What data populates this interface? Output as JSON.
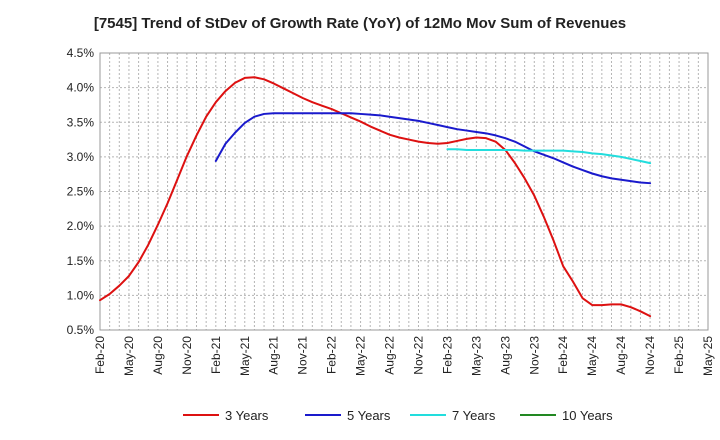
{
  "chart_data": {
    "type": "line",
    "title": "[7545]  Trend of StDev of Growth Rate (YoY) of 12Mo Mov Sum of Revenues",
    "xlabel": "",
    "ylabel": "",
    "ylim": [
      0.5,
      4.5
    ],
    "y_ticks": [
      "0.5%",
      "1.0%",
      "1.5%",
      "2.0%",
      "2.5%",
      "3.0%",
      "3.5%",
      "4.0%",
      "4.5%"
    ],
    "x_ticks": [
      "Feb-20",
      "May-20",
      "Aug-20",
      "Nov-20",
      "Feb-21",
      "May-21",
      "Aug-21",
      "Nov-21",
      "Feb-22",
      "May-22",
      "Aug-22",
      "Nov-22",
      "Feb-23",
      "May-23",
      "Aug-23",
      "Nov-23",
      "Feb-24",
      "May-24",
      "Aug-24",
      "Nov-24",
      "Feb-25",
      "May-25"
    ],
    "grid": true,
    "legend_position": "bottom",
    "series": [
      {
        "name": "3 Years",
        "color": "#dd1111",
        "points": [
          [
            0,
            0.93
          ],
          [
            1,
            1.02
          ],
          [
            2,
            1.14
          ],
          [
            3,
            1.28
          ],
          [
            4,
            1.48
          ],
          [
            5,
            1.73
          ],
          [
            6,
            2.02
          ],
          [
            7,
            2.33
          ],
          [
            8,
            2.67
          ],
          [
            9,
            3.01
          ],
          [
            10,
            3.31
          ],
          [
            11,
            3.58
          ],
          [
            12,
            3.79
          ],
          [
            13,
            3.95
          ],
          [
            14,
            4.07
          ],
          [
            15,
            4.14
          ],
          [
            16,
            4.15
          ],
          [
            17,
            4.12
          ],
          [
            18,
            4.06
          ],
          [
            19,
            3.99
          ],
          [
            20,
            3.92
          ],
          [
            21,
            3.85
          ],
          [
            22,
            3.79
          ],
          [
            23,
            3.74
          ],
          [
            24,
            3.69
          ],
          [
            25,
            3.63
          ],
          [
            26,
            3.57
          ],
          [
            27,
            3.51
          ],
          [
            28,
            3.44
          ],
          [
            29,
            3.38
          ],
          [
            30,
            3.32
          ],
          [
            31,
            3.28
          ],
          [
            32,
            3.25
          ],
          [
            33,
            3.22
          ],
          [
            34,
            3.2
          ],
          [
            35,
            3.19
          ],
          [
            36,
            3.2
          ],
          [
            37,
            3.23
          ],
          [
            38,
            3.26
          ],
          [
            39,
            3.28
          ],
          [
            40,
            3.27
          ],
          [
            41,
            3.22
          ],
          [
            42,
            3.1
          ],
          [
            43,
            2.91
          ],
          [
            44,
            2.69
          ],
          [
            45,
            2.44
          ],
          [
            46,
            2.13
          ],
          [
            47,
            1.79
          ],
          [
            48,
            1.42
          ],
          [
            49,
            1.2
          ],
          [
            50,
            0.96
          ],
          [
            51,
            0.86
          ],
          [
            52,
            0.86
          ],
          [
            53,
            0.87
          ],
          [
            54,
            0.87
          ],
          [
            55,
            0.83
          ],
          [
            56,
            0.77
          ],
          [
            57,
            0.7
          ]
        ]
      },
      {
        "name": "5 Years",
        "color": "#1a1acc",
        "points": [
          [
            12,
            2.94
          ],
          [
            13,
            3.19
          ],
          [
            14,
            3.35
          ],
          [
            15,
            3.49
          ],
          [
            16,
            3.58
          ],
          [
            17,
            3.62
          ],
          [
            18,
            3.63
          ],
          [
            19,
            3.63
          ],
          [
            20,
            3.63
          ],
          [
            21,
            3.63
          ],
          [
            22,
            3.63
          ],
          [
            23,
            3.63
          ],
          [
            24,
            3.63
          ],
          [
            25,
            3.63
          ],
          [
            26,
            3.63
          ],
          [
            27,
            3.62
          ],
          [
            28,
            3.61
          ],
          [
            29,
            3.6
          ],
          [
            30,
            3.58
          ],
          [
            31,
            3.56
          ],
          [
            32,
            3.54
          ],
          [
            33,
            3.52
          ],
          [
            34,
            3.49
          ],
          [
            35,
            3.46
          ],
          [
            36,
            3.43
          ],
          [
            37,
            3.4
          ],
          [
            38,
            3.38
          ],
          [
            39,
            3.36
          ],
          [
            40,
            3.34
          ],
          [
            41,
            3.31
          ],
          [
            42,
            3.27
          ],
          [
            43,
            3.22
          ],
          [
            44,
            3.15
          ],
          [
            45,
            3.08
          ],
          [
            46,
            3.03
          ],
          [
            47,
            2.98
          ],
          [
            48,
            2.92
          ],
          [
            49,
            2.86
          ],
          [
            50,
            2.81
          ],
          [
            51,
            2.76
          ],
          [
            52,
            2.72
          ],
          [
            53,
            2.69
          ],
          [
            54,
            2.67
          ],
          [
            55,
            2.65
          ],
          [
            56,
            2.63
          ],
          [
            57,
            2.62
          ]
        ]
      },
      {
        "name": "7 Years",
        "color": "#22dddd",
        "points": [
          [
            36,
            3.11
          ],
          [
            37,
            3.11
          ],
          [
            38,
            3.1
          ],
          [
            39,
            3.1
          ],
          [
            40,
            3.1
          ],
          [
            41,
            3.1
          ],
          [
            42,
            3.1
          ],
          [
            43,
            3.1
          ],
          [
            44,
            3.09
          ],
          [
            45,
            3.09
          ],
          [
            46,
            3.09
          ],
          [
            47,
            3.09
          ],
          [
            48,
            3.09
          ],
          [
            49,
            3.08
          ],
          [
            50,
            3.07
          ],
          [
            51,
            3.05
          ],
          [
            52,
            3.04
          ],
          [
            53,
            3.02
          ],
          [
            54,
            3.0
          ],
          [
            55,
            2.97
          ],
          [
            56,
            2.94
          ],
          [
            57,
            2.91
          ]
        ]
      },
      {
        "name": "10 Years",
        "color": "#228822",
        "points": []
      }
    ]
  }
}
